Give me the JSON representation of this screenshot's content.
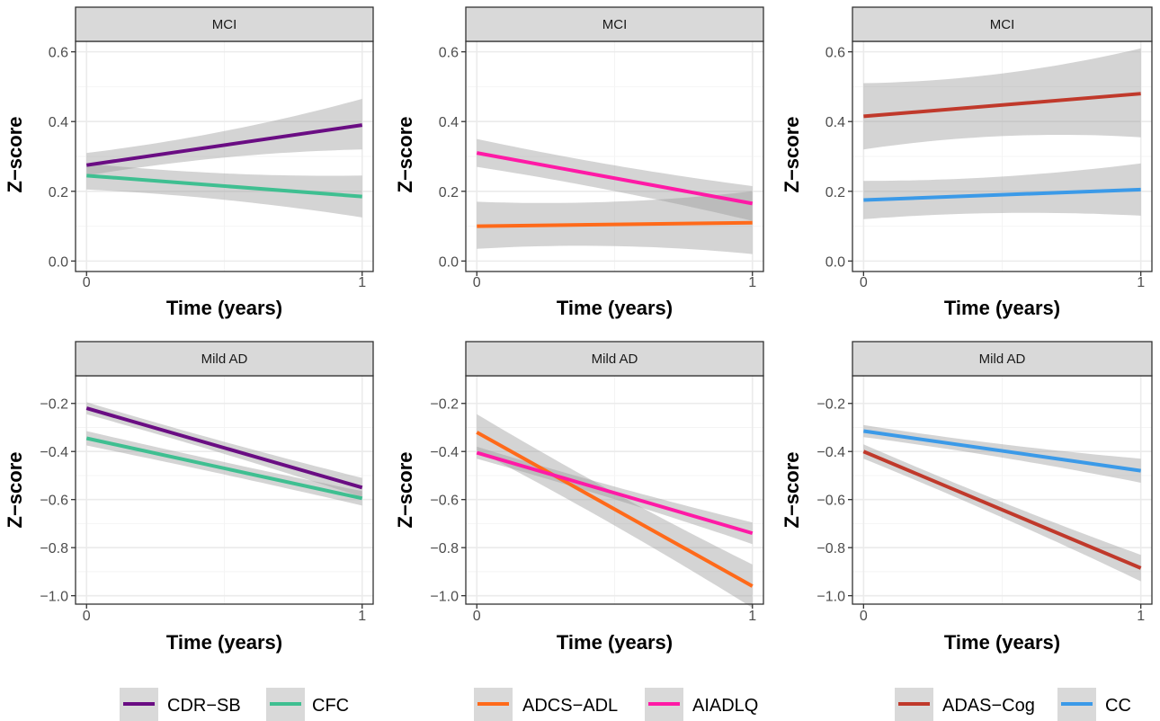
{
  "chart_data": [
    {
      "type": "line",
      "strip_label": "MCI",
      "xlabel": "Time (years)",
      "ylabel": "Z−score",
      "xlim": [
        -0.04,
        1.04
      ],
      "ylim": [
        -0.03,
        0.63
      ],
      "xticks": [
        0,
        1
      ],
      "xtick_labels": [
        "0",
        "1"
      ],
      "yticks": [
        0,
        0.2,
        0.4,
        0.6
      ],
      "ytick_labels": [
        "0.0",
        "0.2",
        "0.4",
        "0.6"
      ],
      "grid": true,
      "series": [
        {
          "name": "CDR−SB",
          "color": "#6a0d83",
          "x": [
            0,
            1
          ],
          "y": [
            0.275,
            0.39
          ],
          "ci_lower": [
            0.245,
            0.32
          ],
          "ci_upper": [
            0.31,
            0.465
          ]
        },
        {
          "name": "CFC",
          "color": "#3fbf91",
          "x": [
            0,
            1
          ],
          "y": [
            0.245,
            0.185
          ],
          "ci_lower": [
            0.205,
            0.125
          ],
          "ci_upper": [
            0.28,
            0.245
          ]
        }
      ]
    },
    {
      "type": "line",
      "strip_label": "MCI",
      "xlabel": "Time (years)",
      "ylabel": "Z−score",
      "xlim": [
        -0.04,
        1.04
      ],
      "ylim": [
        -0.03,
        0.63
      ],
      "xticks": [
        0,
        1
      ],
      "xtick_labels": [
        "0",
        "1"
      ],
      "yticks": [
        0,
        0.2,
        0.4,
        0.6
      ],
      "ytick_labels": [
        "0.0",
        "0.2",
        "0.4",
        "0.6"
      ],
      "grid": true,
      "series": [
        {
          "name": "ADCS−ADL",
          "color": "#ff6a1a",
          "x": [
            0,
            1
          ],
          "y": [
            0.1,
            0.11
          ],
          "ci_lower": [
            0.035,
            0.02
          ],
          "ci_upper": [
            0.17,
            0.2
          ]
        },
        {
          "name": "AIADLQ",
          "color": "#ff1aa6",
          "x": [
            0,
            1
          ],
          "y": [
            0.31,
            0.165
          ],
          "ci_lower": [
            0.27,
            0.115
          ],
          "ci_upper": [
            0.35,
            0.215
          ]
        }
      ]
    },
    {
      "type": "line",
      "strip_label": "MCI",
      "xlabel": "Time (years)",
      "ylabel": "Z−score",
      "xlim": [
        -0.04,
        1.04
      ],
      "ylim": [
        -0.03,
        0.63
      ],
      "xticks": [
        0,
        1
      ],
      "xtick_labels": [
        "0",
        "1"
      ],
      "yticks": [
        0,
        0.2,
        0.4,
        0.6
      ],
      "ytick_labels": [
        "0.0",
        "0.2",
        "0.4",
        "0.6"
      ],
      "grid": true,
      "series": [
        {
          "name": "ADAS−Cog",
          "color": "#c0392b",
          "x": [
            0,
            1
          ],
          "y": [
            0.415,
            0.48
          ],
          "ci_lower": [
            0.32,
            0.355
          ],
          "ci_upper": [
            0.51,
            0.61
          ]
        },
        {
          "name": "CC",
          "color": "#3b9ae8",
          "x": [
            0,
            1
          ],
          "y": [
            0.175,
            0.205
          ],
          "ci_lower": [
            0.12,
            0.13
          ],
          "ci_upper": [
            0.23,
            0.28
          ]
        }
      ]
    },
    {
      "type": "line",
      "strip_label": "Mild AD",
      "xlabel": "Time (years)",
      "ylabel": "Z−score",
      "xlim": [
        -0.04,
        1.04
      ],
      "ylim": [
        -1.035,
        -0.085
      ],
      "xticks": [
        0,
        1
      ],
      "xtick_labels": [
        "0",
        "1"
      ],
      "yticks": [
        -1.0,
        -0.8,
        -0.6,
        -0.4,
        -0.2
      ],
      "ytick_labels": [
        "−1.0",
        "−0.8",
        "−0.6",
        "−0.4",
        "−0.2"
      ],
      "grid": true,
      "series": [
        {
          "name": "CDR−SB",
          "color": "#6a0d83",
          "x": [
            0,
            1
          ],
          "y": [
            -0.22,
            -0.55
          ],
          "ci_lower": [
            -0.245,
            -0.59
          ],
          "ci_upper": [
            -0.195,
            -0.51
          ]
        },
        {
          "name": "CFC",
          "color": "#3fbf91",
          "x": [
            0,
            1
          ],
          "y": [
            -0.345,
            -0.595
          ],
          "ci_lower": [
            -0.375,
            -0.625
          ],
          "ci_upper": [
            -0.315,
            -0.565
          ]
        }
      ]
    },
    {
      "type": "line",
      "strip_label": "Mild AD",
      "xlabel": "Time (years)",
      "ylabel": "Z−score",
      "xlim": [
        -0.04,
        1.04
      ],
      "ylim": [
        -1.035,
        -0.085
      ],
      "xticks": [
        0,
        1
      ],
      "xtick_labels": [
        "0",
        "1"
      ],
      "yticks": [
        -1.0,
        -0.8,
        -0.6,
        -0.4,
        -0.2
      ],
      "ytick_labels": [
        "−1.0",
        "−0.8",
        "−0.6",
        "−0.4",
        "−0.2"
      ],
      "grid": true,
      "series": [
        {
          "name": "ADCS−ADL",
          "color": "#ff6a1a",
          "x": [
            0,
            1
          ],
          "y": [
            -0.32,
            -0.96
          ],
          "ci_lower": [
            -0.395,
            -1.05
          ],
          "ci_upper": [
            -0.245,
            -0.87
          ]
        },
        {
          "name": "AIADLQ",
          "color": "#ff1aa6",
          "x": [
            0,
            1
          ],
          "y": [
            -0.405,
            -0.74
          ],
          "ci_lower": [
            -0.43,
            -0.785
          ],
          "ci_upper": [
            -0.38,
            -0.695
          ]
        }
      ]
    },
    {
      "type": "line",
      "strip_label": "Mild AD",
      "xlabel": "Time (years)",
      "ylabel": "Z−score",
      "xlim": [
        -0.04,
        1.04
      ],
      "ylim": [
        -1.035,
        -0.085
      ],
      "xticks": [
        0,
        1
      ],
      "xtick_labels": [
        "0",
        "1"
      ],
      "yticks": [
        -1.0,
        -0.8,
        -0.6,
        -0.4,
        -0.2
      ],
      "ytick_labels": [
        "−1.0",
        "−0.8",
        "−0.6",
        "−0.4",
        "−0.2"
      ],
      "grid": true,
      "series": [
        {
          "name": "ADAS−Cog",
          "color": "#c0392b",
          "x": [
            0,
            1
          ],
          "y": [
            -0.4,
            -0.885
          ],
          "ci_lower": [
            -0.43,
            -0.94
          ],
          "ci_upper": [
            -0.37,
            -0.83
          ]
        },
        {
          "name": "CC",
          "color": "#3b9ae8",
          "x": [
            0,
            1
          ],
          "y": [
            -0.315,
            -0.48
          ],
          "ci_lower": [
            -0.34,
            -0.53
          ],
          "ci_upper": [
            -0.29,
            -0.43
          ]
        }
      ]
    }
  ],
  "legends": [
    {
      "items": [
        {
          "label": "CDR−SB",
          "color": "#6a0d83"
        },
        {
          "label": "CFC",
          "color": "#3fbf91"
        }
      ]
    },
    {
      "items": [
        {
          "label": "ADCS−ADL",
          "color": "#ff6a1a"
        },
        {
          "label": "AIADLQ",
          "color": "#ff1aa6"
        }
      ]
    },
    {
      "items": [
        {
          "label": "ADAS−Cog",
          "color": "#c0392b"
        },
        {
          "label": "CC",
          "color": "#3b9ae8"
        }
      ]
    }
  ],
  "colors": {
    "strip_fill": "#d9d9d9",
    "ci_fill": "#999999",
    "grid": "#ebebeb",
    "panel_border": "#333333"
  }
}
